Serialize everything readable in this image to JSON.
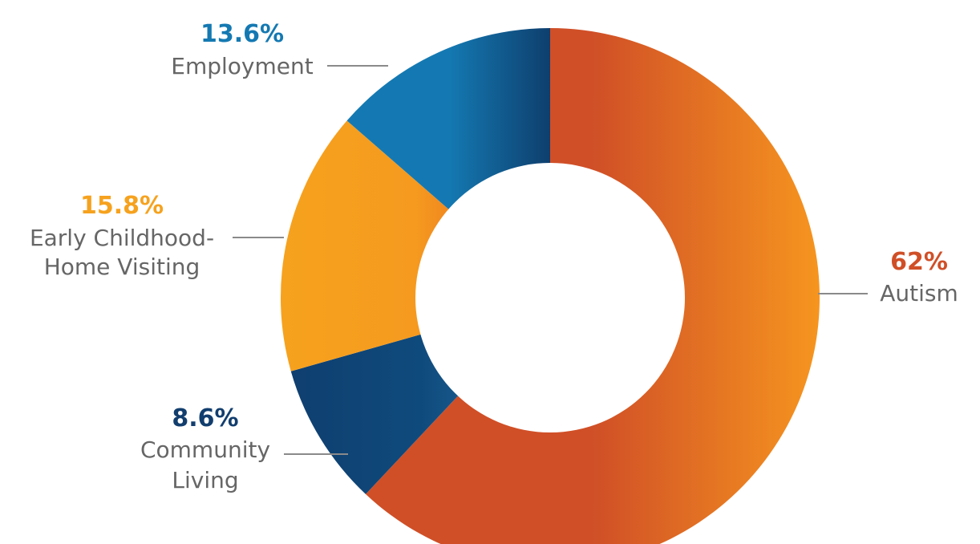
{
  "chart_data": {
    "type": "pie",
    "slices": [
      {
        "name": "Autism",
        "label_lines": [
          "Autism"
        ],
        "pct_text": "62%",
        "value": 62,
        "color": "#D04F27",
        "gradient": [
          "#D04F27",
          "#D04F27",
          "#F6951F"
        ],
        "pct_color": "#D04F27"
      },
      {
        "name": "Community Living",
        "label_lines": [
          "Community",
          "Living"
        ],
        "pct_text": "8.6%",
        "value": 8.6,
        "color": "#0F4A7C",
        "gradient": [
          "#0F3F70",
          "#0F4A7C",
          "#2A74A8"
        ],
        "pct_color": "#123E6E"
      },
      {
        "name": "Early Childhood-Home Visiting",
        "label_lines": [
          "Early Childhood-",
          "Home Visiting"
        ],
        "pct_text": "15.8%",
        "value": 15.8,
        "color": "#F6A21E",
        "gradient": [
          "#F6A21E",
          "#F59A1F",
          "#E5541F"
        ],
        "pct_color": "#F6A21E"
      },
      {
        "name": "Employment",
        "label_lines": [
          "Employment"
        ],
        "pct_text": "13.6%",
        "value": 13.6,
        "color": "#1479B2",
        "gradient": [
          "#1479B2",
          "#1479B2",
          "#0E3F6E"
        ],
        "pct_color": "#1479B2"
      }
    ],
    "start_angle_deg": 0,
    "direction": "clockwise",
    "donut": true,
    "legend": "none",
    "title": "",
    "xlabel": "",
    "ylabel": ""
  }
}
